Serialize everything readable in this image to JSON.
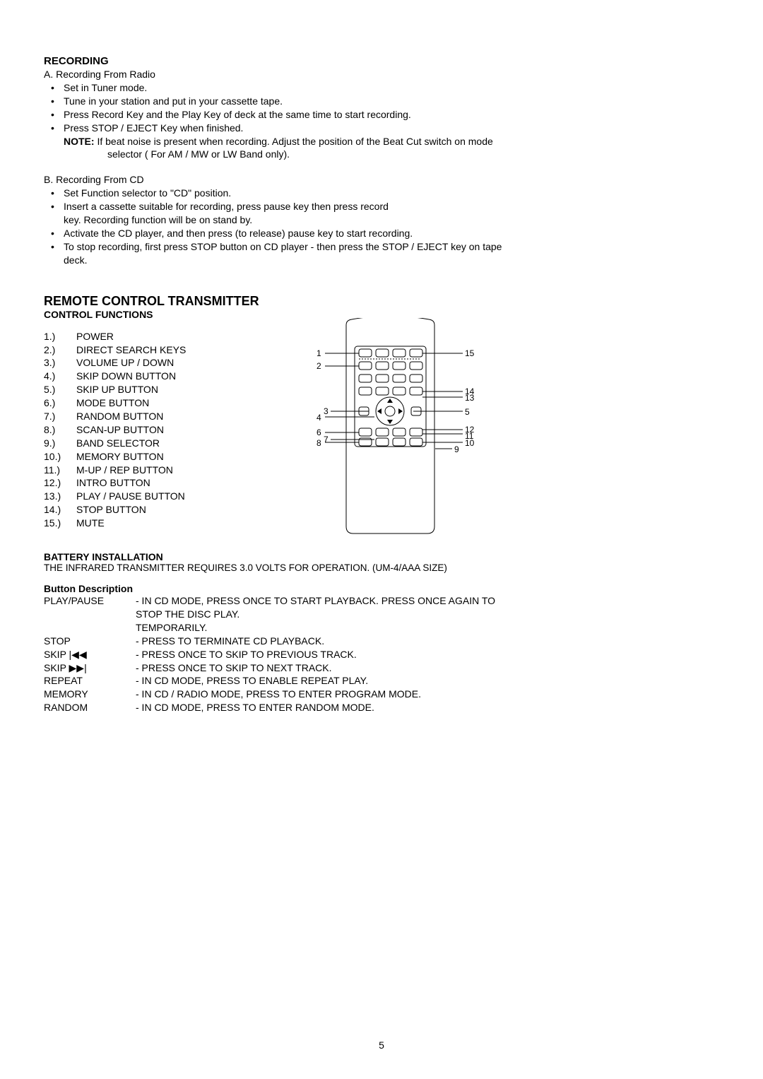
{
  "recording": {
    "heading": "RECORDING",
    "section_a": {
      "title": "A. Recording From Radio",
      "bullets": [
        "Set in Tuner mode.",
        "Tune in your station and put in your cassette tape.",
        "Press Record Key and the Play Key of deck at the same time to start recording.",
        "Press STOP / EJECT Key when finished."
      ],
      "note_label": "NOTE:",
      "note_line1": "If beat noise is present when recording. Adjust the position of the Beat Cut switch on mode",
      "note_line2": "selector ( For AM / MW or LW Band only)."
    },
    "section_b": {
      "title": "B. Recording From CD",
      "bullets": [
        "Set Function selector to \"CD\" position.",
        "Insert a cassette suitable for recording, press pause key then press record",
        "Activate the CD player, and then press (to release) pause key to start recording.",
        "To stop recording, first press STOP button on CD player - then press the STOP / EJECT key on tape"
      ],
      "bullet2_cont": "key. Recording function will be on stand by.",
      "bullet4_cont": "deck."
    }
  },
  "remote": {
    "title": "REMOTE CONTROL TRANSMITTER",
    "subtitle": "CONTROL FUNCTIONS",
    "items": [
      "POWER",
      "DIRECT SEARCH KEYS",
      "VOLUME UP / DOWN",
      "SKIP DOWN BUTTON",
      "SKIP UP BUTTON",
      "MODE BUTTON",
      "RANDOM BUTTON",
      "SCAN-UP BUTTON",
      "BAND SELECTOR",
      "MEMORY BUTTON",
      "M-UP / REP BUTTON",
      "INTRO BUTTON",
      "PLAY / PAUSE BUTTON",
      "STOP BUTTON",
      "MUTE"
    ]
  },
  "battery": {
    "heading": "BATTERY INSTALLATION",
    "text": "THE INFRARED TRANSMITTER REQUIRES 3.0 VOLTS FOR OPERATION. (UM-4/AAA SIZE)"
  },
  "button_desc": {
    "heading": "Button Description",
    "rows": [
      {
        "label": "PLAY/PAUSE",
        "text1": "- IN CD MODE, PRESS ONCE TO START PLAYBACK. PRESS ONCE AGAIN TO",
        "text2": "  STOP THE DISC PLAY.",
        "text3": "  TEMPORARILY."
      },
      {
        "label": "STOP",
        "text1": "- PRESS TO TERMINATE CD PLAYBACK."
      },
      {
        "label": "SKIP |◀◀",
        "text1": "- PRESS ONCE TO SKIP TO PREVIOUS TRACK."
      },
      {
        "label": "SKIP ▶▶|",
        "text1": "- PRESS ONCE TO SKIP TO NEXT TRACK."
      },
      {
        "label": "REPEAT",
        "text1": "- IN CD MODE, PRESS TO ENABLE REPEAT PLAY."
      },
      {
        "label": "MEMORY",
        "text1": "- IN CD / RADIO MODE, PRESS TO ENTER PROGRAM MODE."
      },
      {
        "label": "RANDOM",
        "text1": "- IN CD MODE, PRESS TO ENTER RANDOM MODE."
      }
    ]
  },
  "page_number": "5",
  "callouts": {
    "left": [
      "1",
      "2",
      "3",
      "4",
      "6",
      "8",
      "7"
    ],
    "right": [
      "15",
      "14",
      "13",
      "5",
      "12",
      "11",
      "10",
      "9"
    ]
  }
}
